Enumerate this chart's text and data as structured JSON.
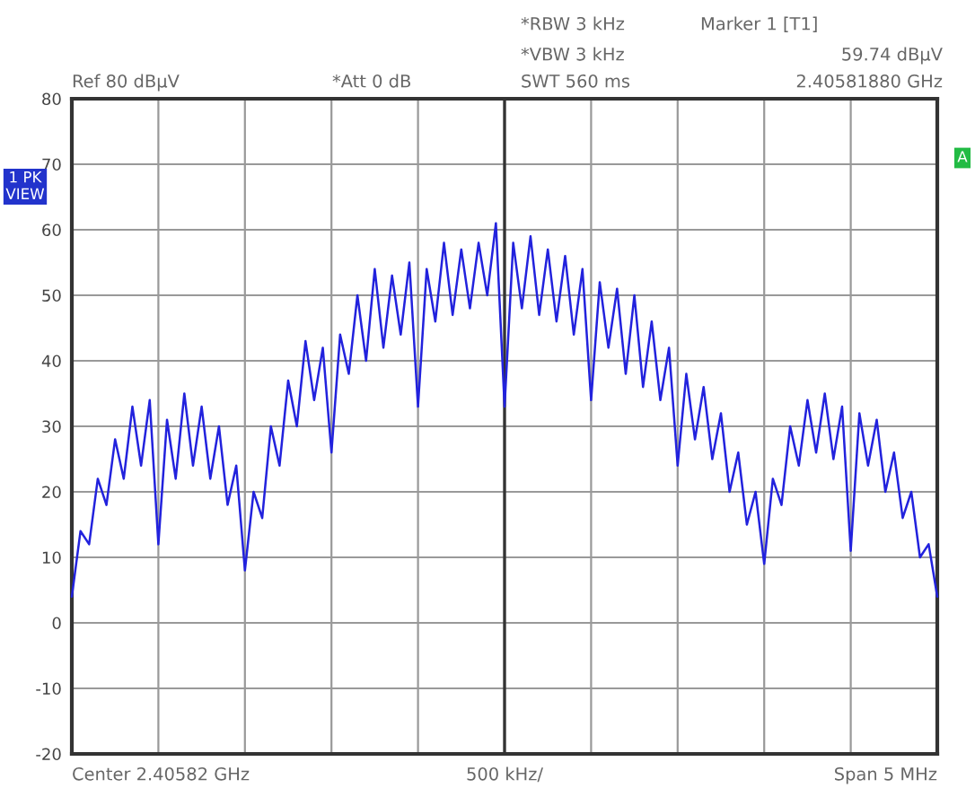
{
  "chart_data": {
    "type": "line",
    "categories": [
      null,
      null,
      null,
      null,
      null,
      null,
      null,
      null,
      null,
      null,
      null,
      null,
      null,
      null,
      null,
      null,
      null,
      null,
      null,
      null,
      null,
      null,
      null,
      null,
      null,
      null,
      null,
      null,
      null,
      null,
      null,
      null,
      null,
      null,
      null,
      null,
      null,
      null,
      null,
      null,
      null,
      null,
      null,
      null,
      null,
      null,
      null,
      null,
      null,
      null,
      null,
      null,
      null,
      null,
      null,
      null,
      null,
      null,
      null,
      null,
      null,
      null,
      null,
      null,
      null,
      null,
      null,
      null,
      null,
      null,
      null,
      null,
      null,
      null,
      null,
      null,
      null,
      null,
      null,
      null,
      null,
      null,
      null,
      null,
      null,
      null,
      null,
      null,
      null,
      null,
      null,
      null,
      null,
      null,
      null,
      null,
      null,
      null,
      null,
      null,
      null
    ],
    "series": [
      {
        "color": "#2222dd",
        "values": [
          4,
          14,
          12,
          22,
          18,
          28,
          22,
          33,
          24,
          34,
          12,
          31,
          22,
          35,
          24,
          33,
          22,
          30,
          18,
          24,
          8,
          20,
          16,
          30,
          24,
          37,
          30,
          43,
          34,
          42,
          26,
          44,
          38,
          50,
          40,
          54,
          42,
          53,
          44,
          55,
          33,
          54,
          46,
          58,
          47,
          57,
          48,
          58,
          50,
          61,
          33,
          58,
          48,
          59,
          47,
          57,
          46,
          56,
          44,
          54,
          34,
          52,
          42,
          51,
          38,
          50,
          36,
          46,
          34,
          42,
          24,
          38,
          28,
          36,
          25,
          32,
          20,
          26,
          15,
          20,
          9,
          22,
          18,
          30,
          24,
          34,
          26,
          35,
          25,
          33,
          11,
          32,
          24,
          31,
          20,
          26,
          16,
          20,
          10,
          12,
          4
        ]
      }
    ],
    "ylim": [
      -20,
      80
    ],
    "yticks": [
      -20,
      -10,
      0,
      10,
      20,
      30,
      40,
      50,
      60,
      70,
      80
    ],
    "tick_labels": "y",
    "grid": true,
    "line_style": "solid",
    "annotations": [
      "*RBW 3 kHz",
      "Marker 1 [T1]",
      "*VBW 3 kHz",
      "59.74 dBµV",
      "Ref 80 dBµV",
      "*Att 0 dB",
      "SWT 560 ms",
      "2.40581880 GHz",
      "1 PK\nVIEW",
      "A",
      "Center 2.40582 GHz",
      "500 kHz/",
      "Span 5 MHz"
    ]
  }
}
